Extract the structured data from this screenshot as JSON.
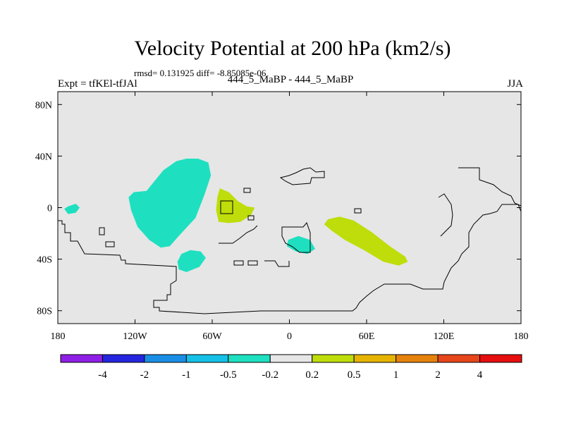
{
  "title": "Velocity Potential at 200 hPa (km2/s)",
  "subtitle": "rmsd= 0.131925 diff= -8.85085e-06",
  "left_label": "Expt = tfKEl-tfJAl",
  "center_label": "444_5_MaBP - 444_5_MaBP",
  "right_label": "JJA",
  "map": {
    "lon_range": [
      -180,
      180
    ],
    "lat_range": [
      -90,
      90
    ],
    "lon_ticks": [
      {
        "lon": -180,
        "label": "180"
      },
      {
        "lon": -120,
        "label": "120W"
      },
      {
        "lon": -60,
        "label": "60W"
      },
      {
        "lon": 0,
        "label": "0"
      },
      {
        "lon": 60,
        "label": "60E"
      },
      {
        "lon": 120,
        "label": "120E"
      },
      {
        "lon": 180,
        "label": "180"
      }
    ],
    "lat_ticks": [
      {
        "lat": 80,
        "label": "80N"
      },
      {
        "lat": 40,
        "label": "40N"
      },
      {
        "lat": 0,
        "label": "0"
      },
      {
        "lat": -40,
        "label": "40S"
      },
      {
        "lat": -80,
        "label": "80S"
      }
    ],
    "background_color": "#e6e6e6"
  },
  "colorbar": {
    "colors": [
      "#8f1fe6",
      "#2525e0",
      "#1a8ee6",
      "#16c0e6",
      "#1ee0c0",
      "#e6e6e6",
      "#bedd0a",
      "#e6b400",
      "#e6820c",
      "#e6461a",
      "#e60e0e"
    ],
    "labels": [
      "-4",
      "-2",
      "-1",
      "-0.5",
      "-0.2",
      "0.2",
      "0.5",
      "1",
      "2",
      "4"
    ]
  },
  "anomaly_regions": [
    {
      "sign": "negative",
      "color": "#1ee0c0",
      "points": [
        [
          -111,
          13
        ],
        [
          -98,
          29
        ],
        [
          -88,
          36
        ],
        [
          -80,
          38
        ],
        [
          -71,
          38
        ],
        [
          -63,
          35
        ],
        [
          -61,
          25
        ],
        [
          -66,
          10
        ],
        [
          -73,
          -8
        ],
        [
          -86,
          -22
        ],
        [
          -93,
          -30
        ],
        [
          -100,
          -31
        ],
        [
          -109,
          -25
        ],
        [
          -118,
          -15
        ],
        [
          -123,
          -2
        ],
        [
          -125,
          8
        ],
        [
          -121,
          12
        ]
      ]
    },
    {
      "sign": "negative",
      "color": "#1ee0c0",
      "points": [
        [
          -172,
          1
        ],
        [
          -166,
          3
        ],
        [
          -163,
          0
        ],
        [
          -166,
          -4
        ],
        [
          -172,
          -5
        ],
        [
          -175,
          -1
        ]
      ]
    },
    {
      "sign": "negative",
      "color": "#1ee0c0",
      "points": [
        [
          -84,
          -36
        ],
        [
          -77,
          -33
        ],
        [
          -69,
          -34
        ],
        [
          -65,
          -39
        ],
        [
          -70,
          -46
        ],
        [
          -80,
          -50
        ],
        [
          -86,
          -48
        ],
        [
          -87,
          -42
        ]
      ]
    },
    {
      "sign": "negative",
      "color": "#1ee0c0",
      "points": [
        [
          -1,
          -25
        ],
        [
          7,
          -22
        ],
        [
          16,
          -25
        ],
        [
          20,
          -32
        ],
        [
          14,
          -36
        ],
        [
          5,
          -34
        ],
        [
          -2,
          -30
        ]
      ]
    },
    {
      "sign": "positive",
      "color": "#bedd0a",
      "points": [
        [
          -54,
          15
        ],
        [
          -47,
          12
        ],
        [
          -40,
          5
        ],
        [
          -33,
          1
        ],
        [
          -27,
          0
        ],
        [
          -30,
          -6
        ],
        [
          -38,
          -11
        ],
        [
          -47,
          -12
        ],
        [
          -55,
          -11
        ],
        [
          -57,
          -2
        ],
        [
          -56,
          8
        ]
      ]
    },
    {
      "sign": "positive",
      "color": "#bedd0a",
      "points": [
        [
          30,
          -9
        ],
        [
          39,
          -7
        ],
        [
          50,
          -10
        ],
        [
          64,
          -19
        ],
        [
          78,
          -30
        ],
        [
          90,
          -38
        ],
        [
          92,
          -42
        ],
        [
          85,
          -45
        ],
        [
          73,
          -42
        ],
        [
          58,
          -33
        ],
        [
          43,
          -25
        ],
        [
          33,
          -18
        ],
        [
          27,
          -13
        ]
      ]
    }
  ]
}
